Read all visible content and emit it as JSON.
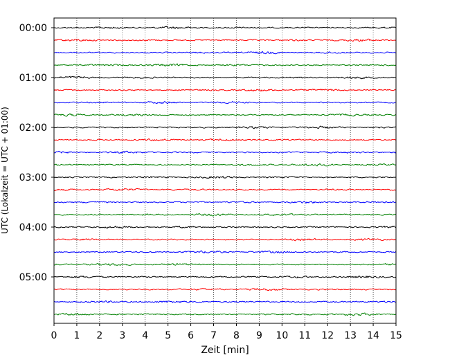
{
  "chart_data": {
    "type": "line",
    "title": "",
    "xlabel": "Zeit  [min]",
    "ylabel": "UTC (Lokalzeit = UTC + 01:00)",
    "xlim": [
      0,
      15
    ],
    "x_ticks": [
      0,
      1,
      2,
      3,
      4,
      5,
      6,
      7,
      8,
      9,
      10,
      11,
      12,
      13,
      14,
      15
    ],
    "y_ticks": [
      "00:00",
      "01:00",
      "02:00",
      "03:00",
      "04:00",
      "05:00"
    ],
    "trace_interval_min": 15,
    "trace_count": 24,
    "grid": "vertical dotted at each minute",
    "legend": "none",
    "trace_colors": [
      "#000000",
      "#ff0000",
      "#0000ff",
      "#008000"
    ]
  }
}
